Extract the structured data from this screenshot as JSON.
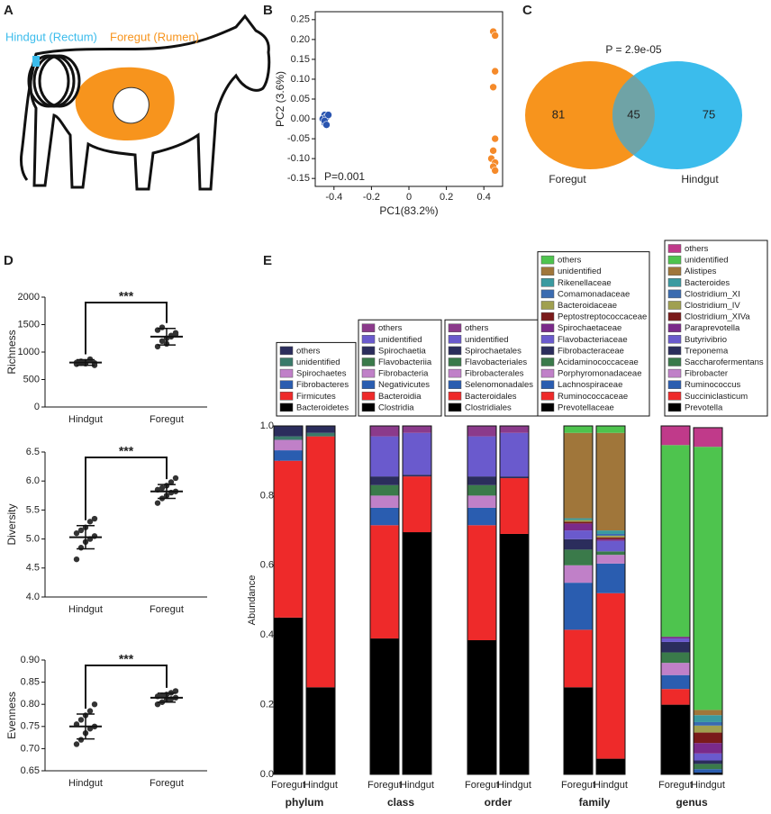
{
  "panel_labels": [
    "A",
    "B",
    "C",
    "D",
    "E"
  ],
  "illustration": {
    "hindgut_label": "Hindgut (Rectum)",
    "foregut_label": "Foregut (Rumen)"
  },
  "chart_data": [
    {
      "type": "scatter",
      "xlabel": "PC1(83.2%)",
      "ylabel": "PC2 (3.6%)",
      "annotation": "P=0.001",
      "xlim": [
        -0.5,
        0.5
      ],
      "xticks": [
        -0.4,
        -0.2,
        0,
        0.2,
        0.4
      ],
      "ylim": [
        -0.17,
        0.27
      ],
      "yticks": [
        -0.15,
        {
          "value": -0.1,
          "label": "-0.10"
        },
        -0.05,
        {
          "value": 0,
          "label": "0.00"
        },
        0.05,
        {
          "value": 0.1,
          "label": "0.10"
        },
        0.15,
        {
          "value": 0.2,
          "label": "0.20"
        },
        0.25
      ],
      "series": [
        {
          "color": "#2a55b0",
          "x": [
            -0.45,
            -0.46,
            -0.44,
            -0.45,
            -0.43,
            -0.45,
            -0.44
          ],
          "values": [
            0.01,
            0,
            0.005,
            -0.01,
            0.01,
            -0.005,
            -0.015
          ]
        },
        {
          "color": "#f58a2a",
          "x": [
            0.45,
            0.46,
            0.46,
            0.45,
            0.46,
            0.45,
            0.44,
            0.46,
            0.45,
            0.46
          ],
          "values": [
            0.22,
            0.21,
            0.12,
            0.08,
            -0.05,
            -0.08,
            -0.1,
            -0.11,
            -0.12,
            -0.13
          ]
        }
      ]
    },
    {
      "type": "venn",
      "annotation": "P = 2.9e-05",
      "overlap": 45,
      "sets": [
        {
          "name": "Foregut",
          "only": 81,
          "color": "#f7941d"
        },
        {
          "name": "Hindgut",
          "only": 75,
          "color": "#3bbcec"
        }
      ]
    },
    {
      "type": "dot",
      "ylabel": "Richness",
      "annotation": "***",
      "ylim": [
        0,
        2000
      ],
      "yticks": [
        0,
        500,
        1000,
        1500,
        2000
      ],
      "groups": [
        {
          "name": "Hindgut",
          "values": [
            780,
            800,
            820,
            850,
            760,
            810,
            830,
            790,
            870,
            800
          ],
          "mean": 810,
          "sd": 50
        },
        {
          "name": "Foregut",
          "values": [
            1100,
            1200,
            1250,
            1300,
            1350,
            1400,
            1450,
            1150,
            1280,
            1320
          ],
          "mean": 1280,
          "sd": 150
        }
      ]
    },
    {
      "type": "dot",
      "ylabel": "Diversity",
      "annotation": "***",
      "ylim": [
        4.0,
        6.5
      ],
      "yticks": [
        {
          "value": 4,
          "label": "4.0"
        },
        4.5,
        {
          "value": 5,
          "label": "5.0"
        },
        5.5,
        {
          "value": 6,
          "label": "6.0"
        },
        6.5
      ],
      "groups": [
        {
          "name": "Hindgut",
          "values": [
            4.65,
            4.85,
            4.95,
            5.0,
            5.05,
            5.1,
            5.15,
            5.2,
            5.3,
            5.35
          ],
          "mean": 5.03,
          "sd": 0.2
        },
        {
          "name": "Foregut",
          "values": [
            5.62,
            5.7,
            5.75,
            5.8,
            5.82,
            5.85,
            5.88,
            5.92,
            5.98,
            6.05
          ],
          "mean": 5.82,
          "sd": 0.12
        }
      ]
    },
    {
      "type": "dot",
      "ylabel": "Evenness",
      "annotation": "***",
      "ylim": [
        0.65,
        0.9
      ],
      "yticks": [
        0.65,
        {
          "value": 0.7,
          "label": "0.70"
        },
        0.75,
        {
          "value": 0.8,
          "label": "0.80"
        },
        0.85,
        {
          "value": 0.9,
          "label": "0.90"
        }
      ],
      "groups": [
        {
          "name": "Hindgut",
          "values": [
            0.71,
            0.72,
            0.735,
            0.745,
            0.75,
            0.755,
            0.765,
            0.775,
            0.785,
            0.8
          ],
          "mean": 0.75,
          "sd": 0.028
        },
        {
          "name": "Foregut",
          "values": [
            0.8,
            0.805,
            0.81,
            0.812,
            0.815,
            0.818,
            0.82,
            0.822,
            0.826,
            0.83
          ],
          "mean": 0.815,
          "sd": 0.01
        }
      ]
    },
    {
      "type": "stacked_groups",
      "ylabel": "Abundance",
      "ylim": [
        0,
        1
      ],
      "yticks": [
        {
          "value": 0,
          "label": "0.0"
        },
        0.2,
        0.4,
        0.6,
        0.8,
        {
          "value": 1,
          "label": "1.0"
        }
      ],
      "groups": [
        {
          "name": "phylum",
          "categories": [
            "Foregut",
            "Hindgut"
          ],
          "series": [
            {
              "name": "others",
              "color": "#2b2d5c",
              "values": [
                0.03,
                0.02
              ]
            },
            {
              "name": "unidentified",
              "color": "#3a7a6a",
              "values": [
                0.01,
                0.01
              ]
            },
            {
              "name": "Spirochaetes",
              "color": "#c080c8",
              "values": [
                0.03,
                0
              ]
            },
            {
              "name": "Fibrobacteres",
              "color": "#2a5db0",
              "values": [
                0.03,
                0
              ]
            },
            {
              "name": "Firmicutes",
              "color": "#ee2a2a",
              "values": [
                0.45,
                0.72
              ]
            },
            {
              "name": "Bacteroidetes",
              "color": "#000000",
              "values": [
                0.45,
                0.25
              ]
            }
          ]
        },
        {
          "name": "class",
          "categories": [
            "Foregut",
            "Hindgut"
          ],
          "series": [
            {
              "name": "others",
              "color": "#8b3a8b",
              "values": [
                0.03,
                0.02
              ]
            },
            {
              "name": "unidentified",
              "color": "#6a5acd",
              "values": [
                0.115,
                0.12
              ]
            },
            {
              "name": "Spirochaetia",
              "color": "#2b2d5c",
              "values": [
                0.025,
                0.005
              ]
            },
            {
              "name": "Flavobacteriia",
              "color": "#3a7a4a",
              "values": [
                0.03,
                0
              ]
            },
            {
              "name": "Fibrobacteria",
              "color": "#c080c8",
              "values": [
                0.035,
                0
              ]
            },
            {
              "name": "Negativicutes",
              "color": "#2a5db0",
              "values": [
                0.05,
                0
              ]
            },
            {
              "name": "Bacteroidia",
              "color": "#ee2a2a",
              "values": [
                0.325,
                0.16
              ]
            },
            {
              "name": "Clostridia",
              "color": "#000000",
              "values": [
                0.39,
                0.695
              ]
            }
          ]
        },
        {
          "name": "order",
          "categories": [
            "Foregut",
            "Hindgut"
          ],
          "series": [
            {
              "name": "others",
              "color": "#8b3a8b",
              "values": [
                0.03,
                0.02
              ]
            },
            {
              "name": "unidentified",
              "color": "#6a5acd",
              "values": [
                0.115,
                0.125
              ]
            },
            {
              "name": "Spirochaetales",
              "color": "#2b2d5c",
              "values": [
                0.025,
                0.005
              ]
            },
            {
              "name": "Flavobacteriales",
              "color": "#3a7a4a",
              "values": [
                0.03,
                0
              ]
            },
            {
              "name": "Fibrobacterales",
              "color": "#c080c8",
              "values": [
                0.035,
                0
              ]
            },
            {
              "name": "Selenomonadales",
              "color": "#2a5db0",
              "values": [
                0.05,
                0
              ]
            },
            {
              "name": "Bacteroidales",
              "color": "#ee2a2a",
              "values": [
                0.33,
                0.16
              ]
            },
            {
              "name": "Clostridiales",
              "color": "#000000",
              "values": [
                0.385,
                0.69
              ]
            }
          ]
        },
        {
          "name": "family",
          "categories": [
            "Foregut",
            "Hindgut"
          ],
          "series": [
            {
              "name": "others",
              "color": "#4ec44e",
              "values": [
                0.02,
                0.02
              ]
            },
            {
              "name": "unidentified",
              "color": "#a0763a",
              "values": [
                0.245,
                0.28
              ]
            },
            {
              "name": "Rikenellaceae",
              "color": "#3a9aa0",
              "values": [
                0.005,
                0.01
              ]
            },
            {
              "name": "Comamonadaceae",
              "color": "#3a6bb0",
              "values": [
                0,
                0.005
              ]
            },
            {
              "name": "Bacteroidaceae",
              "color": "#a0a050",
              "values": [
                0.005,
                0.005
              ]
            },
            {
              "name": "Peptostreptococcaceae",
              "color": "#7a1a1a",
              "values": [
                0.005,
                0.005
              ]
            },
            {
              "name": "Spirochaetaceae",
              "color": "#7a2a8a",
              "values": [
                0.02,
                0.005
              ]
            },
            {
              "name": "Flavobacteriaceae",
              "color": "#6a5acd",
              "values": [
                0.025,
                0.03
              ]
            },
            {
              "name": "Fibrobacteraceae",
              "color": "#2b2d5c",
              "values": [
                0.03,
                0
              ]
            },
            {
              "name": "Acidaminococcaceae",
              "color": "#3a7a4a",
              "values": [
                0.045,
                0.01
              ]
            },
            {
              "name": "Porphyromonadaceae",
              "color": "#c080c8",
              "values": [
                0.05,
                0.025
              ]
            },
            {
              "name": "Lachnospiraceae",
              "color": "#2a5db0",
              "values": [
                0.135,
                0.085
              ]
            },
            {
              "name": "Ruminococcaceae",
              "color": "#ee2a2a",
              "values": [
                0.165,
                0.475
              ]
            },
            {
              "name": "Prevotellaceae",
              "color": "#000000",
              "values": [
                0.25,
                0.045
              ]
            }
          ]
        },
        {
          "name": "genus",
          "categories": [
            "Foregut",
            "Hindgut"
          ],
          "series": [
            {
              "name": "others",
              "color": "#c03a8a",
              "values": [
                0.055,
                0.055
              ]
            },
            {
              "name": "unidentified",
              "color": "#4ec44e",
              "values": [
                0.55,
                0.755
              ]
            },
            {
              "name": "Alistipes",
              "color": "#a0763a",
              "values": [
                0,
                0.015
              ]
            },
            {
              "name": "Bacteroides",
              "color": "#3a9aa0",
              "values": [
                0,
                0.02
              ]
            },
            {
              "name": "Clostridium_XI",
              "color": "#3a6bb0",
              "values": [
                0,
                0.01
              ]
            },
            {
              "name": "Clostridium_IV",
              "color": "#a0a050",
              "values": [
                0,
                0.02
              ]
            },
            {
              "name": "Clostridium_XIVa",
              "color": "#7a1a1a",
              "values": [
                0,
                0.03
              ]
            },
            {
              "name": "Paraprevotella",
              "color": "#7a2a8a",
              "values": [
                0.005,
                0.03
              ]
            },
            {
              "name": "Butyrivibrio",
              "color": "#6a5acd",
              "values": [
                0.01,
                0.02
              ]
            },
            {
              "name": "Treponema",
              "color": "#2b2d5c",
              "values": [
                0.03,
                0.01
              ]
            },
            {
              "name": "Saccharofermentans",
              "color": "#3a7a4a",
              "values": [
                0.03,
                0.015
              ]
            },
            {
              "name": "Fibrobacter",
              "color": "#c080c8",
              "values": [
                0.035,
                0
              ]
            },
            {
              "name": "Ruminococcus",
              "color": "#2a5db0",
              "values": [
                0.04,
                0.01
              ]
            },
            {
              "name": "Succiniclasticum",
              "color": "#ee2a2a",
              "values": [
                0.045,
                0
              ]
            },
            {
              "name": "Prevotella",
              "color": "#000000",
              "values": [
                0.2,
                0.005
              ]
            }
          ]
        }
      ]
    }
  ]
}
